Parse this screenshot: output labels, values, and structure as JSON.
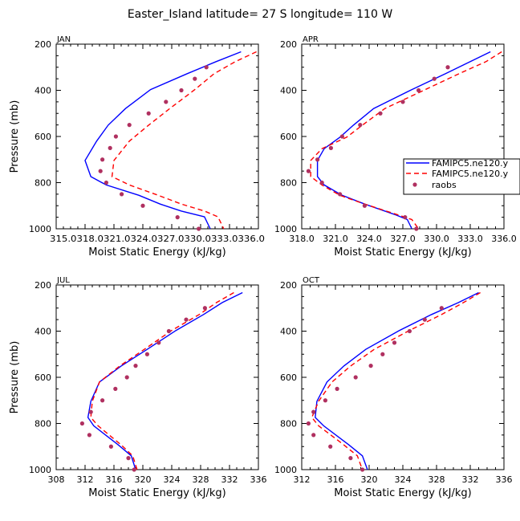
{
  "page_title": "Easter_Island  latitude= 27 S longitude= 110 W",
  "legend": {
    "entries": [
      {
        "label": "FAMIPC5.ne120.y",
        "style": "solid",
        "color": "#0000ff"
      },
      {
        "label": "FAMIPC5.ne120.y",
        "style": "dashed",
        "color": "#ff0000"
      },
      {
        "label": "raobs",
        "style": "dot",
        "color": "#b03060"
      }
    ]
  },
  "colors": {
    "model_solid": "#0000ff",
    "model_dashed": "#ff0000",
    "raobs": "#b03060"
  },
  "chart_data": [
    {
      "type": "line",
      "month": "JAN",
      "xlabel": "Moist Static Energy (kJ/kg)",
      "ylabel": "Pressure (mb)",
      "xlim": [
        315.0,
        336.0
      ],
      "ylim": [
        1000,
        200
      ],
      "xticks": [
        315.0,
        318.0,
        321.0,
        324.0,
        327.0,
        330.0,
        333.0,
        336.0
      ],
      "xtick_labels": [
        "315.0",
        "318.0",
        "321.0",
        "324.0",
        "327.0",
        "330.0",
        "333.0",
        "336.0"
      ],
      "xtick_text": "315.0318.0321.0324.0327.0330.0333.0336.0",
      "yticks": [
        200,
        400,
        600,
        800,
        1000
      ],
      "series": [
        {
          "name": "FAMIPC5.ne120.y",
          "style": "solid",
          "x": [
            334.2,
            331.6,
            328.6,
            324.8,
            322.2,
            320.4,
            319.2,
            318.0,
            318.6,
            320.2,
            323.6,
            325.8,
            328.0,
            330.4,
            331.0
          ],
          "y": [
            233,
            276,
            328,
            397,
            479,
            551,
            620,
            704,
            774,
            810,
            855,
            893,
            923,
            948,
            1000
          ]
        },
        {
          "name": "FAMIPC5.ne120.y",
          "style": "dashed",
          "x": [
            335.8,
            333.6,
            331.4,
            329.4,
            326.8,
            324.6,
            322.6,
            321.0,
            320.8,
            322.6,
            325.6,
            328.0,
            330.4,
            331.8,
            332.4
          ],
          "y": [
            233,
            276,
            328,
            397,
            479,
            551,
            620,
            704,
            774,
            810,
            855,
            893,
            923,
            948,
            1000
          ]
        },
        {
          "name": "raobs",
          "style": "dot",
          "x": [
            330.6,
            329.4,
            328.0,
            326.4,
            324.6,
            322.6,
            321.2,
            320.6,
            319.8,
            319.6,
            320.2,
            321.8,
            324.0,
            327.6,
            329.8
          ],
          "y": [
            300,
            350,
            400,
            450,
            500,
            550,
            600,
            650,
            700,
            750,
            800,
            850,
            900,
            950,
            1000
          ]
        }
      ]
    },
    {
      "type": "line",
      "month": "APR",
      "xlabel": "Moist Static Energy (kJ/kg)",
      "ylabel": "",
      "xlim": [
        318.0,
        336.0
      ],
      "ylim": [
        1000,
        200
      ],
      "xticks": [
        318.0,
        321.0,
        324.0,
        327.0,
        330.0,
        333.0,
        336.0
      ],
      "xtick_labels": [
        "318.0",
        "321.0",
        "324.0",
        "327.0",
        "330.0",
        "333.0",
        "336.0"
      ],
      "yticks": [
        200,
        400,
        600,
        800,
        1000
      ],
      "series": [
        {
          "name": "FAMIPC5.ne120.y",
          "style": "solid",
          "x": [
            334.8,
            333.0,
            330.8,
            327.8,
            324.4,
            322.6,
            321.4,
            320.0,
            319.4,
            319.4,
            320.0,
            321.6,
            323.6,
            326.4,
            327.4,
            327.8
          ],
          "y": [
            233,
            276,
            328,
            397,
            479,
            551,
            603,
            653,
            704,
            774,
            810,
            855,
            893,
            940,
            960,
            1000
          ]
        },
        {
          "name": "FAMIPC5.ne120.y",
          "style": "dashed",
          "x": [
            335.8,
            334.4,
            332.0,
            329.0,
            325.4,
            323.4,
            322.0,
            319.8,
            318.8,
            318.8,
            319.8,
            321.4,
            323.6,
            326.6,
            327.8,
            328.4
          ],
          "y": [
            233,
            276,
            328,
            397,
            479,
            551,
            603,
            653,
            704,
            774,
            810,
            855,
            893,
            940,
            960,
            1000
          ]
        },
        {
          "name": "raobs",
          "style": "dot",
          "x": [
            331.0,
            329.8,
            328.4,
            327.0,
            325.0,
            323.2,
            321.6,
            320.6,
            319.4,
            318.6,
            319.8,
            321.4,
            323.6,
            327.2,
            328.2
          ],
          "y": [
            300,
            350,
            400,
            450,
            500,
            550,
            600,
            650,
            700,
            750,
            800,
            850,
            900,
            950,
            1000
          ]
        }
      ]
    },
    {
      "type": "line",
      "month": "JUL",
      "xlabel": "Moist Static Energy (kJ/kg)",
      "ylabel": "Pressure (mb)",
      "xlim": [
        308,
        336
      ],
      "ylim": [
        1000,
        200
      ],
      "xticks": [
        308,
        312,
        316,
        320,
        324,
        328,
        332,
        336
      ],
      "xtick_labels": [
        "308",
        "312",
        "316",
        "320",
        "324",
        "328",
        "332",
        "336"
      ],
      "yticks": [
        200,
        400,
        600,
        800,
        1000
      ],
      "series": [
        {
          "name": "FAMIPC5.ne120.y",
          "style": "solid",
          "x": [
            333.8,
            331.0,
            328.4,
            324.6,
            320.6,
            317.0,
            314.0,
            312.8,
            312.4,
            313.2,
            316.6,
            318.4,
            319.0
          ],
          "y": [
            233,
            276,
            328,
            397,
            479,
            551,
            620,
            704,
            774,
            810,
            893,
            940,
            1000
          ]
        },
        {
          "name": "FAMIPC5.ne120.y",
          "style": "dashed",
          "x": [
            332.6,
            330.2,
            327.8,
            324.0,
            320.2,
            316.8,
            314.0,
            313.0,
            312.8,
            313.8,
            317.0,
            318.6,
            319.2
          ],
          "y": [
            233,
            276,
            328,
            397,
            479,
            551,
            620,
            704,
            774,
            810,
            893,
            940,
            1000
          ]
        },
        {
          "name": "raobs",
          "style": "dot",
          "x": [
            328.6,
            326.0,
            323.6,
            322.2,
            320.6,
            319.0,
            317.8,
            316.2,
            314.4,
            312.8,
            311.6,
            312.6,
            315.6,
            318.0,
            318.8
          ],
          "y": [
            300,
            350,
            400,
            450,
            500,
            550,
            600,
            650,
            700,
            750,
            800,
            850,
            900,
            950,
            1000
          ]
        }
      ]
    },
    {
      "type": "line",
      "month": "OCT",
      "xlabel": "Moist Static Energy (kJ/kg)",
      "ylabel": "",
      "xlim": [
        312,
        336
      ],
      "ylim": [
        1000,
        200
      ],
      "xticks": [
        312,
        316,
        320,
        324,
        328,
        332,
        336
      ],
      "xtick_labels": [
        "312",
        "316",
        "320",
        "324",
        "328",
        "332",
        "336"
      ],
      "yticks": [
        200,
        400,
        600,
        800,
        1000
      ],
      "series": [
        {
          "name": "FAMIPC5.ne120.y",
          "style": "solid",
          "x": [
            333.0,
            330.6,
            327.4,
            323.6,
            319.6,
            317.0,
            315.0,
            313.8,
            313.6,
            314.6,
            317.6,
            319.2,
            319.8
          ],
          "y": [
            233,
            276,
            328,
            397,
            479,
            551,
            620,
            704,
            774,
            810,
            893,
            940,
            1000
          ]
        },
        {
          "name": "FAMIPC5.ne120.y",
          "style": "dashed",
          "x": [
            333.2,
            331.2,
            328.6,
            324.8,
            320.6,
            317.8,
            315.6,
            314.0,
            313.2,
            314.0,
            317.0,
            318.6,
            319.2
          ],
          "y": [
            233,
            276,
            328,
            397,
            479,
            551,
            620,
            704,
            774,
            810,
            893,
            940,
            1000
          ]
        },
        {
          "name": "raobs",
          "style": "dot",
          "x": [
            328.6,
            326.6,
            324.8,
            323.0,
            321.6,
            320.2,
            318.4,
            316.2,
            314.8,
            313.4,
            312.8,
            313.4,
            315.4,
            317.8,
            319.2
          ],
          "y": [
            300,
            350,
            400,
            450,
            500,
            550,
            600,
            650,
            700,
            750,
            800,
            850,
            900,
            950,
            1000
          ]
        }
      ]
    }
  ]
}
